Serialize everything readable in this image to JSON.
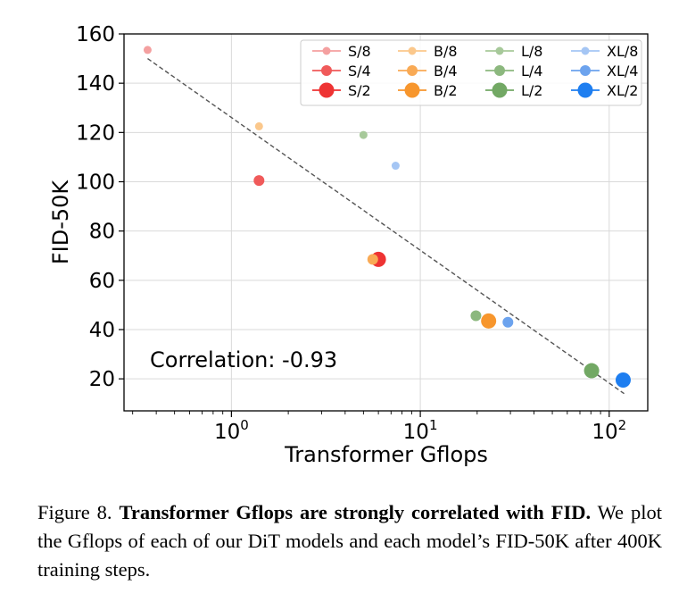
{
  "chart_data": {
    "type": "scatter",
    "xlabel": "Transformer Gflops",
    "ylabel": "FID-50K",
    "xscale": "log",
    "xlim": [
      0.27,
      160
    ],
    "ylim": [
      7,
      160
    ],
    "yticks": [
      "20",
      "40",
      "60",
      "80",
      "100",
      "120",
      "140",
      "160"
    ],
    "xticks": [
      {
        "base": "10",
        "exp": "0",
        "value": 1
      },
      {
        "base": "10",
        "exp": "1",
        "value": 10
      },
      {
        "base": "10",
        "exp": "2",
        "value": 100
      }
    ],
    "grid": true,
    "legend_position": "top-right",
    "annotation": "Correlation: -0.93",
    "trendline": {
      "x": [
        0.36,
        120
      ],
      "y": [
        150,
        14
      ]
    },
    "series": [
      {
        "name": "S/8",
        "color": "#f4a0a0",
        "x": 0.36,
        "y": 153.5
      },
      {
        "name": "S/4",
        "color": "#f05a5a",
        "x": 1.4,
        "y": 100.5
      },
      {
        "name": "S/2",
        "color": "#ee3333",
        "x": 6.0,
        "y": 68.5
      },
      {
        "name": "B/8",
        "color": "#fbc88c",
        "x": 1.4,
        "y": 122.5
      },
      {
        "name": "B/4",
        "color": "#f9aa55",
        "x": 5.6,
        "y": 68.5
      },
      {
        "name": "B/2",
        "color": "#f7962d",
        "x": 23.0,
        "y": 43.5
      },
      {
        "name": "L/8",
        "color": "#a7c99a",
        "x": 5.0,
        "y": 119.0
      },
      {
        "name": "L/4",
        "color": "#8cb87e",
        "x": 19.7,
        "y": 45.6
      },
      {
        "name": "L/2",
        "color": "#72a864",
        "x": 80.7,
        "y": 23.3
      },
      {
        "name": "XL/8",
        "color": "#a5c6f4",
        "x": 7.4,
        "y": 106.5
      },
      {
        "name": "XL/4",
        "color": "#6ca3ee",
        "x": 29.1,
        "y": 43.0
      },
      {
        "name": "XL/2",
        "color": "#1e7ef0",
        "x": 118.6,
        "y": 19.5
      }
    ]
  },
  "caption": {
    "label": "Figure 8.",
    "title": "Transformer Gflops are strongly correlated with FID.",
    "body": "We plot the Gflops of each of our DiT models and each model’s FID-50K after 400K training steps."
  }
}
